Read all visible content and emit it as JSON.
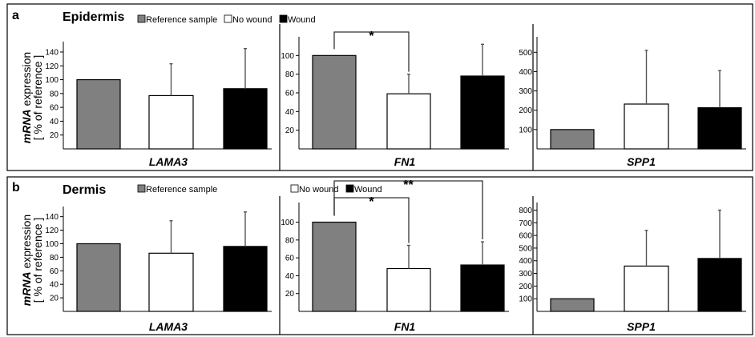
{
  "figure": {
    "legend": [
      {
        "label": "Reference sample",
        "color": "#808080"
      },
      {
        "label": "No wound",
        "color": "#ffffff"
      },
      {
        "label": "Wound",
        "color": "#000000"
      }
    ],
    "ylabel_italic": "mRNA",
    "ylabel_rest": " expression",
    "ylabel_line2": "[ % of reference ]"
  },
  "chart_data": [
    {
      "panel": "a",
      "panel_title": "Epidermis",
      "gene": "LAMA3",
      "type": "bar",
      "categories": [
        "Reference sample",
        "No wound",
        "Wound"
      ],
      "values": [
        100,
        77,
        87
      ],
      "error": [
        0,
        46,
        58
      ],
      "ylim": [
        0,
        155
      ],
      "yticks": [
        20,
        40,
        60,
        80,
        100,
        120,
        140
      ],
      "significance": []
    },
    {
      "panel": "a",
      "panel_title": "Epidermis",
      "gene": "FN1",
      "type": "bar",
      "categories": [
        "Reference sample",
        "No wound",
        "Wound"
      ],
      "values": [
        100,
        59,
        78
      ],
      "error": [
        0,
        21,
        34
      ],
      "ylim": [
        0,
        120
      ],
      "yticks": [
        20,
        40,
        60,
        80,
        100
      ],
      "significance": [
        {
          "from": 0,
          "to": 1,
          "label": "*"
        }
      ]
    },
    {
      "panel": "a",
      "panel_title": "Epidermis",
      "gene": "SPP1",
      "type": "bar",
      "categories": [
        "Reference sample",
        "No wound",
        "Wound"
      ],
      "values": [
        100,
        232,
        213
      ],
      "error": [
        0,
        278,
        192
      ],
      "ylim": [
        0,
        580
      ],
      "yticks": [
        100,
        200,
        300,
        400,
        500
      ],
      "significance": []
    },
    {
      "panel": "b",
      "panel_title": "Dermis",
      "gene": "LAMA3",
      "type": "bar",
      "categories": [
        "Reference sample",
        "No wound",
        "Wound"
      ],
      "values": [
        100,
        86,
        96
      ],
      "error": [
        0,
        48,
        51
      ],
      "ylim": [
        0,
        155
      ],
      "yticks": [
        20,
        40,
        60,
        80,
        100,
        120,
        140
      ],
      "significance": []
    },
    {
      "panel": "b",
      "panel_title": "Dermis",
      "gene": "FN1",
      "type": "bar",
      "categories": [
        "Reference sample",
        "No wound",
        "Wound"
      ],
      "values": [
        100,
        48,
        52
      ],
      "error": [
        0,
        26,
        26
      ],
      "ylim": [
        0,
        122
      ],
      "yticks": [
        20,
        40,
        60,
        80,
        100
      ],
      "significance": [
        {
          "from": 0,
          "to": 1,
          "label": "*",
          "level": 1
        },
        {
          "from": 0,
          "to": 2,
          "label": "**",
          "level": 2
        }
      ]
    },
    {
      "panel": "b",
      "panel_title": "Dermis",
      "gene": "SPP1",
      "type": "bar",
      "categories": [
        "Reference sample",
        "No wound",
        "Wound"
      ],
      "values": [
        100,
        358,
        418
      ],
      "error": [
        0,
        282,
        382
      ],
      "ylim": [
        0,
        860
      ],
      "yticks": [
        100,
        200,
        300,
        400,
        500,
        600,
        700,
        800
      ],
      "significance": []
    }
  ]
}
